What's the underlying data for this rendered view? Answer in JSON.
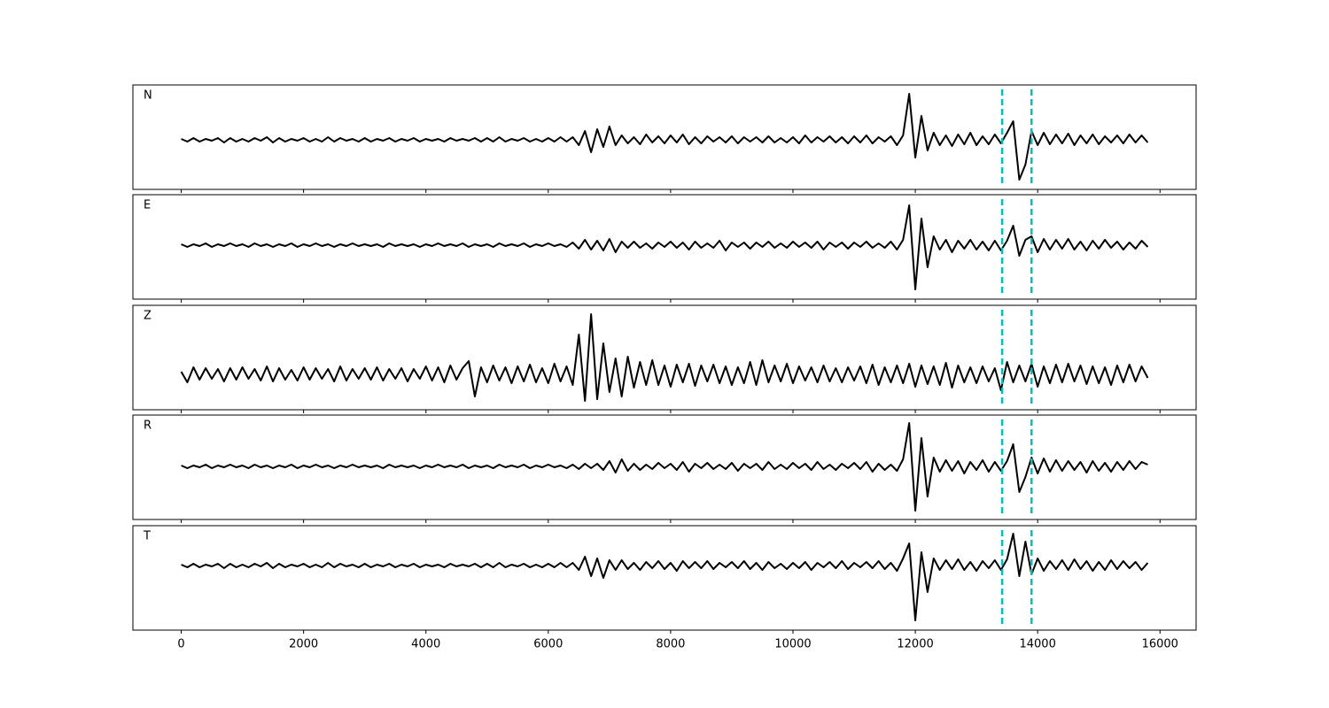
{
  "chart_data": {
    "type": "line",
    "xlim": [
      -790,
      16590
    ],
    "xticks": [
      0,
      2000,
      4000,
      6000,
      8000,
      10000,
      12000,
      14000,
      16000
    ],
    "vlines": [
      13420,
      13900
    ],
    "vline_color": "#00bfbf",
    "x": [
      0,
      100,
      200,
      300,
      400,
      500,
      600,
      700,
      800,
      900,
      1000,
      1100,
      1200,
      1300,
      1400,
      1500,
      1600,
      1700,
      1800,
      1900,
      2000,
      2100,
      2200,
      2300,
      2400,
      2500,
      2600,
      2700,
      2800,
      2900,
      3000,
      3100,
      3200,
      3300,
      3400,
      3500,
      3600,
      3700,
      3800,
      3900,
      4000,
      4100,
      4200,
      4300,
      4400,
      4500,
      4600,
      4700,
      4800,
      4900,
      5000,
      5100,
      5200,
      5300,
      5400,
      5500,
      5600,
      5700,
      5800,
      5900,
      6000,
      6100,
      6200,
      6300,
      6400,
      6500,
      6600,
      6700,
      6800,
      6900,
      7000,
      7100,
      7200,
      7300,
      7400,
      7500,
      7600,
      7700,
      7800,
      7900,
      8000,
      8100,
      8200,
      8300,
      8400,
      8500,
      8600,
      8700,
      8800,
      8900,
      9000,
      9100,
      9200,
      9300,
      9400,
      9500,
      9600,
      9700,
      9800,
      9900,
      10000,
      10100,
      10200,
      10300,
      10400,
      10500,
      10600,
      10700,
      10800,
      10900,
      11000,
      11100,
      11200,
      11300,
      11400,
      11500,
      11600,
      11700,
      11800,
      11900,
      12000,
      12100,
      12200,
      12300,
      12400,
      12500,
      12600,
      12700,
      12800,
      12900,
      13000,
      13100,
      13200,
      13300,
      13400,
      13500,
      13600,
      13700,
      13800,
      13900,
      14000,
      14100,
      14200,
      14300,
      14400,
      14500,
      14600,
      14700,
      14800,
      14900,
      15000,
      15100,
      15200,
      15300,
      15400,
      15500,
      15600,
      15700,
      15800
    ],
    "series": [
      {
        "name": "N",
        "color": "#000000",
        "ylim": [
          -56,
          62
        ],
        "values": [
          1,
          -2,
          2,
          -2,
          1,
          -1,
          2,
          -3,
          2,
          -2,
          1,
          -2,
          2,
          -1,
          3,
          -3,
          2,
          -2,
          1,
          -1,
          2,
          -2,
          1,
          -2,
          3,
          -2,
          2,
          -1,
          1,
          -2,
          2,
          -2,
          1,
          -1,
          2,
          -2,
          1,
          -1,
          2,
          -2,
          1,
          -1,
          1,
          -2,
          2,
          -1,
          1,
          -1,
          2,
          -2,
          2,
          -2,
          3,
          -2,
          1,
          -1,
          2,
          -2,
          1,
          -2,
          2,
          -2,
          3,
          -2,
          3,
          -6,
          10,
          -14,
          12,
          -8,
          15,
          -6,
          5,
          -4,
          3,
          -5,
          6,
          -3,
          4,
          -4,
          5,
          -3,
          6,
          -5,
          3,
          -4,
          4,
          -2,
          3,
          -3,
          4,
          -4,
          3,
          -2,
          3,
          -3,
          4,
          -3,
          2,
          -3,
          3,
          -4,
          5,
          -3,
          3,
          -2,
          4,
          -3,
          3,
          -4,
          4,
          -3,
          5,
          -4,
          3,
          -2,
          4,
          -6,
          5,
          52,
          -20,
          27,
          -12,
          8,
          -6,
          5,
          -7,
          6,
          -5,
          8,
          -6,
          4,
          -5,
          6,
          -4,
          8,
          21,
          -45,
          -28,
          10,
          -6,
          8,
          -5,
          6,
          -4,
          7,
          -6,
          5,
          -4,
          6,
          -5,
          4,
          -3,
          5,
          -4,
          6,
          -3,
          5,
          -3
        ]
      },
      {
        "name": "E",
        "color": "#000000",
        "ylim": [
          -61,
          57
        ],
        "values": [
          1,
          -2,
          1,
          -1,
          2,
          -2,
          1,
          -1,
          2,
          -1,
          1,
          -2,
          2,
          -1,
          1,
          -2,
          1,
          -1,
          2,
          -2,
          1,
          -1,
          2,
          -1,
          1,
          -2,
          1,
          -1,
          2,
          -1,
          1,
          -1,
          1,
          -2,
          2,
          -1,
          1,
          -1,
          1,
          -2,
          1,
          -1,
          2,
          -1,
          1,
          -1,
          2,
          -2,
          1,
          -1,
          1,
          -2,
          2,
          -1,
          1,
          -1,
          2,
          -2,
          1,
          -1,
          2,
          -1,
          1,
          -2,
          3,
          -4,
          6,
          -5,
          5,
          -6,
          7,
          -8,
          4,
          -3,
          4,
          -3,
          2,
          -4,
          3,
          -2,
          4,
          -3,
          3,
          -5,
          4,
          -3,
          2,
          -3,
          5,
          -6,
          3,
          -2,
          3,
          -4,
          3,
          -2,
          4,
          -3,
          2,
          -3,
          4,
          -2,
          3,
          -3,
          4,
          -5,
          3,
          -2,
          3,
          -4,
          3,
          -2,
          4,
          -3,
          2,
          -3,
          4,
          -5,
          6,
          45,
          -50,
          30,
          -25,
          10,
          -5,
          6,
          -8,
          5,
          -4,
          6,
          -5,
          4,
          -6,
          5,
          -6,
          5,
          22,
          -12,
          6,
          10,
          -8,
          7,
          -5,
          6,
          -4,
          7,
          -5,
          4,
          -6,
          5,
          -4,
          6,
          -3,
          4,
          -5,
          3,
          -4,
          5,
          -2
        ]
      },
      {
        "name": "Z",
        "color": "#000000",
        "ylim": [
          -40,
          78
        ],
        "values": [
          3,
          -9,
          8,
          -6,
          7,
          -5,
          6,
          -8,
          7,
          -6,
          8,
          -5,
          6,
          -7,
          9,
          -8,
          7,
          -6,
          5,
          -7,
          8,
          -6,
          7,
          -5,
          6,
          -8,
          9,
          -7,
          6,
          -5,
          7,
          -6,
          8,
          -7,
          6,
          -5,
          7,
          -8,
          6,
          -5,
          9,
          -7,
          8,
          -9,
          10,
          -6,
          7,
          15,
          -25,
          8,
          -9,
          10,
          -7,
          8,
          -10,
          9,
          -8,
          11,
          -9,
          7,
          -10,
          12,
          -8,
          9,
          -12,
          45,
          -30,
          68,
          -28,
          35,
          -20,
          18,
          -25,
          20,
          -15,
          14,
          -12,
          16,
          -12,
          10,
          -14,
          11,
          -9,
          12,
          -13,
          10,
          -8,
          11,
          -10,
          9,
          -12,
          8,
          -10,
          14,
          -12,
          16,
          -9,
          10,
          -8,
          12,
          -10,
          9,
          -7,
          8,
          -9,
          10,
          -8,
          7,
          -9,
          8,
          -7,
          9,
          -10,
          11,
          -12,
          8,
          -9,
          10,
          -10,
          12,
          -14,
          10,
          -11,
          9,
          -12,
          13,
          -15,
          10,
          -9,
          8,
          -10,
          9,
          -8,
          7,
          -18,
          14,
          -9,
          10,
          -8,
          12,
          -14,
          9,
          -10,
          11,
          -9,
          12,
          -8,
          10,
          -11,
          9,
          -10,
          8,
          -12,
          10,
          -9,
          11,
          -8,
          9,
          -4
        ]
      },
      {
        "name": "R",
        "color": "#000000",
        "ylim": [
          -60,
          58
        ],
        "values": [
          1,
          -2,
          1,
          -1,
          2,
          -2,
          1,
          -1,
          2,
          -1,
          1,
          -2,
          2,
          -1,
          1,
          -2,
          1,
          -1,
          2,
          -2,
          1,
          -1,
          2,
          -1,
          1,
          -2,
          1,
          -1,
          2,
          -1,
          1,
          -1,
          1,
          -2,
          2,
          -1,
          1,
          -1,
          1,
          -2,
          1,
          -1,
          2,
          -1,
          1,
          -1,
          2,
          -2,
          1,
          -1,
          1,
          -2,
          2,
          -1,
          1,
          -1,
          2,
          -2,
          1,
          -1,
          2,
          -1,
          1,
          -2,
          2,
          -3,
          3,
          -2,
          3,
          -4,
          6,
          -7,
          8,
          -5,
          3,
          -4,
          2,
          -3,
          4,
          -2,
          3,
          -4,
          5,
          -6,
          3,
          -2,
          4,
          -3,
          2,
          -3,
          4,
          -5,
          3,
          -2,
          3,
          -4,
          5,
          -3,
          2,
          -3,
          4,
          -2,
          3,
          -4,
          5,
          -3,
          2,
          -4,
          3,
          -2,
          4,
          -3,
          5,
          -6,
          3,
          -4,
          2,
          -5,
          8,
          49,
          -50,
          32,
          -34,
          10,
          -6,
          7,
          -5,
          6,
          -8,
          5,
          -4,
          7,
          -6,
          5,
          -5,
          6,
          25,
          -29,
          -12,
          10,
          -8,
          9,
          -6,
          7,
          -5,
          6,
          -4,
          5,
          -7,
          6,
          -5,
          4,
          -6,
          5,
          -4,
          6,
          -3,
          5,
          2
        ]
      },
      {
        "name": "T",
        "color": "#000000",
        "ylim": [
          -73,
          45
        ],
        "values": [
          1,
          -2,
          2,
          -2,
          1,
          -1,
          2,
          -3,
          2,
          -2,
          1,
          -2,
          2,
          -1,
          3,
          -3,
          2,
          -2,
          1,
          -1,
          2,
          -2,
          1,
          -2,
          3,
          -2,
          2,
          -1,
          1,
          -2,
          2,
          -2,
          1,
          -1,
          2,
          -2,
          1,
          -1,
          2,
          -2,
          1,
          -1,
          1,
          -2,
          2,
          -1,
          1,
          -1,
          2,
          -2,
          2,
          -2,
          3,
          -2,
          1,
          -1,
          2,
          -2,
          1,
          -2,
          2,
          -2,
          3,
          -2,
          3,
          -5,
          10,
          -12,
          8,
          -14,
          6,
          -5,
          6,
          -4,
          3,
          -5,
          4,
          -3,
          5,
          -4,
          3,
          -6,
          5,
          -3,
          4,
          -3,
          5,
          -4,
          3,
          -2,
          4,
          -3,
          5,
          -4,
          3,
          -5,
          4,
          -3,
          2,
          -4,
          3,
          -3,
          4,
          -5,
          3,
          -2,
          4,
          -3,
          5,
          -4,
          3,
          -2,
          4,
          -3,
          5,
          -4,
          3,
          -6,
          8,
          25,
          -62,
          15,
          -30,
          8,
          -5,
          6,
          -4,
          7,
          -5,
          4,
          -6,
          5,
          -3,
          6,
          -5,
          7,
          36,
          -12,
          27,
          -10,
          8,
          -6,
          5,
          -4,
          6,
          -5,
          7,
          -4,
          5,
          -6,
          4,
          -5,
          6,
          -4,
          5,
          -3,
          4,
          -5,
          3
        ]
      }
    ]
  }
}
